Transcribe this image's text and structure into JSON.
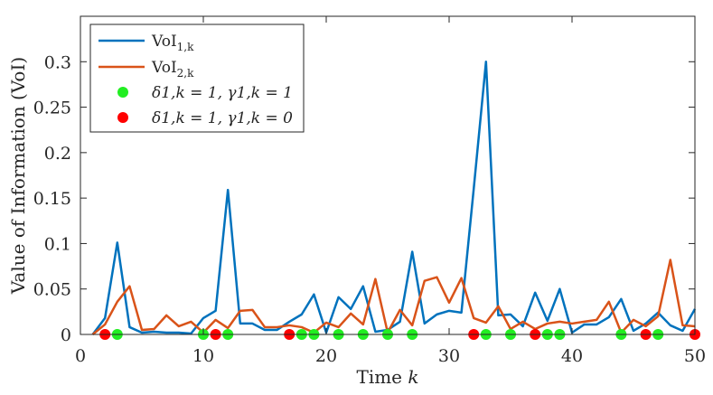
{
  "chart_data": {
    "type": "line",
    "title": "",
    "xlabel": "Time k",
    "xlabel_main": "Time ",
    "xlabel_var": "k",
    "ylabel": "Value of Information (VoI)",
    "xlim": [
      0,
      50
    ],
    "ylim": [
      0,
      0.35
    ],
    "grid": false,
    "legend_position": "top-left",
    "x_ticks": [
      0,
      10,
      20,
      30,
      40,
      50
    ],
    "x_tick_labels": [
      "0",
      "10",
      "20",
      "30",
      "40",
      "50"
    ],
    "y_ticks": [
      0,
      0.05,
      0.1,
      0.15,
      0.2,
      0.25,
      0.3
    ],
    "y_tick_labels": [
      "0",
      "0.05",
      "0.1",
      "0.15",
      "0.2",
      "0.25",
      "0.3"
    ],
    "x": [
      1,
      2,
      3,
      4,
      5,
      6,
      7,
      8,
      9,
      10,
      11,
      12,
      13,
      14,
      15,
      16,
      17,
      18,
      19,
      20,
      21,
      22,
      23,
      24,
      25,
      26,
      27,
      28,
      29,
      30,
      31,
      32,
      33,
      34,
      35,
      36,
      37,
      38,
      39,
      40,
      41,
      42,
      43,
      44,
      45,
      46,
      47,
      48,
      49,
      50
    ],
    "series": [
      {
        "name": "VoI1,k",
        "label_main": "VoI",
        "label_sub": "1,k",
        "color": "#0072BD",
        "values": [
          0.0,
          0.018,
          0.101,
          0.008,
          0.002,
          0.003,
          0.002,
          0.002,
          0.001,
          0.018,
          0.026,
          0.159,
          0.012,
          0.012,
          0.005,
          0.005,
          0.014,
          0.022,
          0.044,
          0.002,
          0.041,
          0.028,
          0.053,
          0.003,
          0.005,
          0.014,
          0.091,
          0.012,
          0.022,
          0.026,
          0.024,
          0.16,
          0.3,
          0.021,
          0.022,
          0.009,
          0.046,
          0.015,
          0.05,
          0.002,
          0.011,
          0.011,
          0.019,
          0.039,
          0.004,
          0.012,
          0.024,
          0.01,
          0.004,
          0.028
        ]
      },
      {
        "name": "VoI2,k",
        "label_main": "VoI",
        "label_sub": "2,k",
        "color": "#D95319",
        "values": [
          0.0,
          0.011,
          0.036,
          0.053,
          0.005,
          0.006,
          0.021,
          0.009,
          0.014,
          0.002,
          0.016,
          0.007,
          0.026,
          0.027,
          0.008,
          0.008,
          0.01,
          0.008,
          0.002,
          0.013,
          0.008,
          0.023,
          0.011,
          0.061,
          0.002,
          0.027,
          0.01,
          0.059,
          0.063,
          0.035,
          0.062,
          0.018,
          0.013,
          0.031,
          0.006,
          0.014,
          0.006,
          0.012,
          0.014,
          0.012,
          0.014,
          0.016,
          0.036,
          0.002,
          0.016,
          0.009,
          0.02,
          0.082,
          0.01,
          0.009
        ]
      }
    ],
    "markers": [
      {
        "name": "delta1,k = 1, gamma1,k = 1",
        "label": "δ1,k = 1, γ1,k = 1",
        "color": "#22EE22",
        "x": [
          3,
          10,
          12,
          18,
          19,
          21,
          23,
          25,
          27,
          33,
          35,
          38,
          39,
          44,
          47
        ],
        "y": 0
      },
      {
        "name": "delta1,k = 1, gamma1,k = 0",
        "label": "δ1,k = 1, γ1,k = 0",
        "color": "#FF0000",
        "x": [
          2,
          11,
          17,
          32,
          37,
          46,
          50
        ],
        "y": 0
      }
    ]
  }
}
